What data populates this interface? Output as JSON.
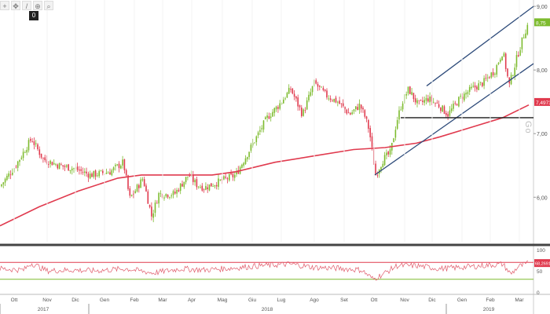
{
  "toolbar": {
    "buttons": [
      {
        "name": "crosshair-icon",
        "glyph": "+"
      },
      {
        "name": "pan-icon",
        "glyph": "✥"
      },
      {
        "name": "draw-icon",
        "glyph": "/"
      },
      {
        "name": "zoom-icon",
        "glyph": "⊕"
      },
      {
        "name": "search-icon",
        "glyph": "⌕"
      }
    ],
    "badge": "0"
  },
  "watermark": "Go",
  "chart_data": [
    {
      "type": "candlestick",
      "title": "",
      "ylim": [
        5.3,
        9.1
      ],
      "y_ticks": [
        "9,00",
        "8,00",
        "7,00",
        "6,00"
      ],
      "y_tick_values": [
        9.0,
        8.0,
        7.0,
        6.0
      ],
      "x_months": [
        "Ott",
        "Nov",
        "Dic",
        "Gen",
        "Feb",
        "Mar",
        "Apr",
        "Mag",
        "Giu",
        "Lug",
        "Ago",
        "Set",
        "Ott",
        "Nov",
        "Dic",
        "Gen",
        "Feb",
        "Mar"
      ],
      "years": [
        "2017",
        "2018",
        "2019"
      ],
      "price_path": [
        [
          0,
          6.17
        ],
        [
          20,
          6.5
        ],
        [
          40,
          6.92
        ],
        [
          55,
          6.6
        ],
        [
          75,
          6.5
        ],
        [
          95,
          6.45
        ],
        [
          115,
          6.35
        ],
        [
          140,
          6.4
        ],
        [
          157,
          6.55
        ],
        [
          165,
          5.98
        ],
        [
          172,
          6.1
        ],
        [
          182,
          6.3
        ],
        [
          193,
          5.7
        ],
        [
          202,
          6.05
        ],
        [
          222,
          6.05
        ],
        [
          240,
          6.35
        ],
        [
          250,
          6.2
        ],
        [
          260,
          6.15
        ],
        [
          280,
          6.25
        ],
        [
          300,
          6.35
        ],
        [
          320,
          6.8
        ],
        [
          340,
          7.25
        ],
        [
          355,
          7.45
        ],
        [
          370,
          7.7
        ],
        [
          385,
          7.3
        ],
        [
          400,
          7.8
        ],
        [
          415,
          7.6
        ],
        [
          430,
          7.5
        ],
        [
          445,
          7.3
        ],
        [
          458,
          7.45
        ],
        [
          465,
          7.25
        ],
        [
          470,
          7.05
        ],
        [
          478,
          6.35
        ],
        [
          488,
          6.6
        ],
        [
          497,
          6.7
        ],
        [
          505,
          7.2
        ],
        [
          512,
          7.5
        ],
        [
          520,
          7.7
        ],
        [
          532,
          7.45
        ],
        [
          545,
          7.55
        ],
        [
          558,
          7.45
        ],
        [
          570,
          7.3
        ],
        [
          585,
          7.55
        ],
        [
          600,
          7.7
        ],
        [
          615,
          7.8
        ],
        [
          630,
          8.0
        ],
        [
          640,
          8.3
        ],
        [
          648,
          7.75
        ],
        [
          658,
          8.2
        ],
        [
          668,
          8.6
        ],
        [
          673,
          8.75
        ]
      ],
      "moving_average": {
        "color": "#e03a4e",
        "path": [
          [
            0,
            5.55
          ],
          [
            50,
            5.85
          ],
          [
            100,
            6.1
          ],
          [
            150,
            6.3
          ],
          [
            180,
            6.35
          ],
          [
            230,
            6.35
          ],
          [
            270,
            6.35
          ],
          [
            300,
            6.4
          ],
          [
            350,
            6.55
          ],
          [
            400,
            6.65
          ],
          [
            450,
            6.75
          ],
          [
            490,
            6.78
          ],
          [
            530,
            6.85
          ],
          [
            560,
            6.95
          ],
          [
            600,
            7.1
          ],
          [
            640,
            7.25
          ],
          [
            673,
            7.45
          ]
        ],
        "last_value": "7,4973"
      },
      "last_price": {
        "value": 8.75,
        "label": "8,75",
        "color": "#7dbb2e"
      },
      "trend_lines": [
        {
          "from": [
            477,
            6.35
          ],
          "to": [
            679,
            8.1
          ],
          "color": "#2e4b7a"
        },
        {
          "from": [
            543,
            7.75
          ],
          "to": [
            679,
            9.0
          ],
          "color": "#2e4b7a"
        },
        {
          "from": [
            510,
            7.25
          ],
          "to": [
            679,
            7.25
          ],
          "color": "#1a1a1a"
        }
      ],
      "candle_colors": {
        "up": "#7dbb2e",
        "down": "#e03a4e"
      }
    },
    {
      "type": "line",
      "title": "",
      "ylim": [
        0,
        100
      ],
      "y_ticks": [
        "100",
        "50",
        "0"
      ],
      "y_tick_values": [
        100,
        50,
        0
      ],
      "levels": [
        {
          "value": 70,
          "color": "#e03a4e"
        },
        {
          "value": 30,
          "color": "#7dbb2e"
        }
      ],
      "series_color": "#e05a6a",
      "last_value": "68,2691",
      "path": [
        [
          0,
          55
        ],
        [
          30,
          52
        ],
        [
          40,
          68
        ],
        [
          60,
          50
        ],
        [
          90,
          52
        ],
        [
          120,
          50
        ],
        [
          160,
          55
        ],
        [
          195,
          45
        ],
        [
          230,
          55
        ],
        [
          260,
          52
        ],
        [
          300,
          57
        ],
        [
          330,
          62
        ],
        [
          370,
          66
        ],
        [
          400,
          58
        ],
        [
          430,
          56
        ],
        [
          460,
          52
        ],
        [
          475,
          30
        ],
        [
          490,
          45
        ],
        [
          505,
          62
        ],
        [
          530,
          62
        ],
        [
          560,
          55
        ],
        [
          600,
          60
        ],
        [
          640,
          66
        ],
        [
          650,
          42
        ],
        [
          660,
          60
        ],
        [
          673,
          68
        ]
      ]
    }
  ]
}
